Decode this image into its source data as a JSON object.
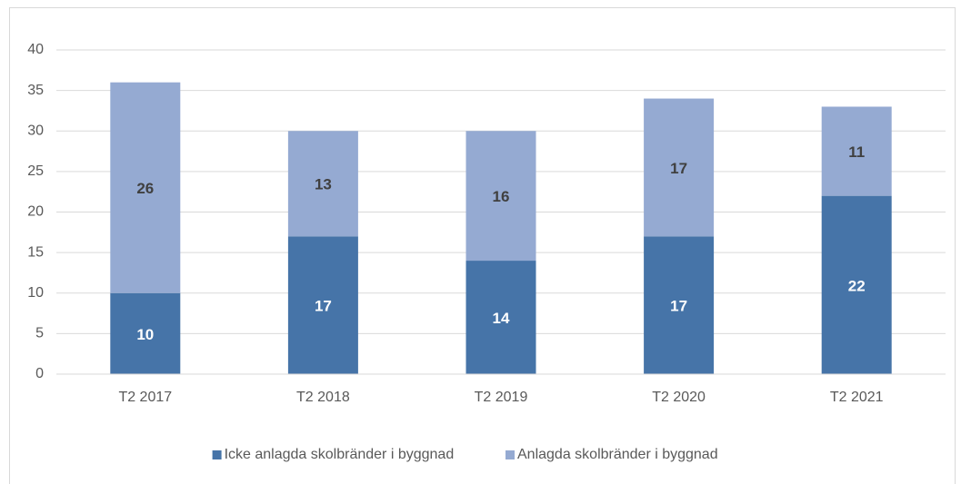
{
  "chart_data": {
    "type": "stacked_bar",
    "categories": [
      "T2 2017",
      "T2 2018",
      "T2 2019",
      "T2 2020",
      "T2 2021"
    ],
    "series": [
      {
        "name": "Icke anlagda skolbränder i byggnad",
        "color": "#4674a8",
        "values": [
          10,
          17,
          14,
          17,
          22
        ]
      },
      {
        "name": "Anlagda skolbränder i byggnad",
        "color": "#95aad2",
        "values": [
          26,
          13,
          16,
          17,
          11
        ]
      }
    ],
    "ylim": [
      0,
      40
    ],
    "yticks": [
      0,
      5,
      10,
      15,
      20,
      25,
      30,
      35,
      40
    ],
    "grid": true,
    "legend": "bottom"
  }
}
